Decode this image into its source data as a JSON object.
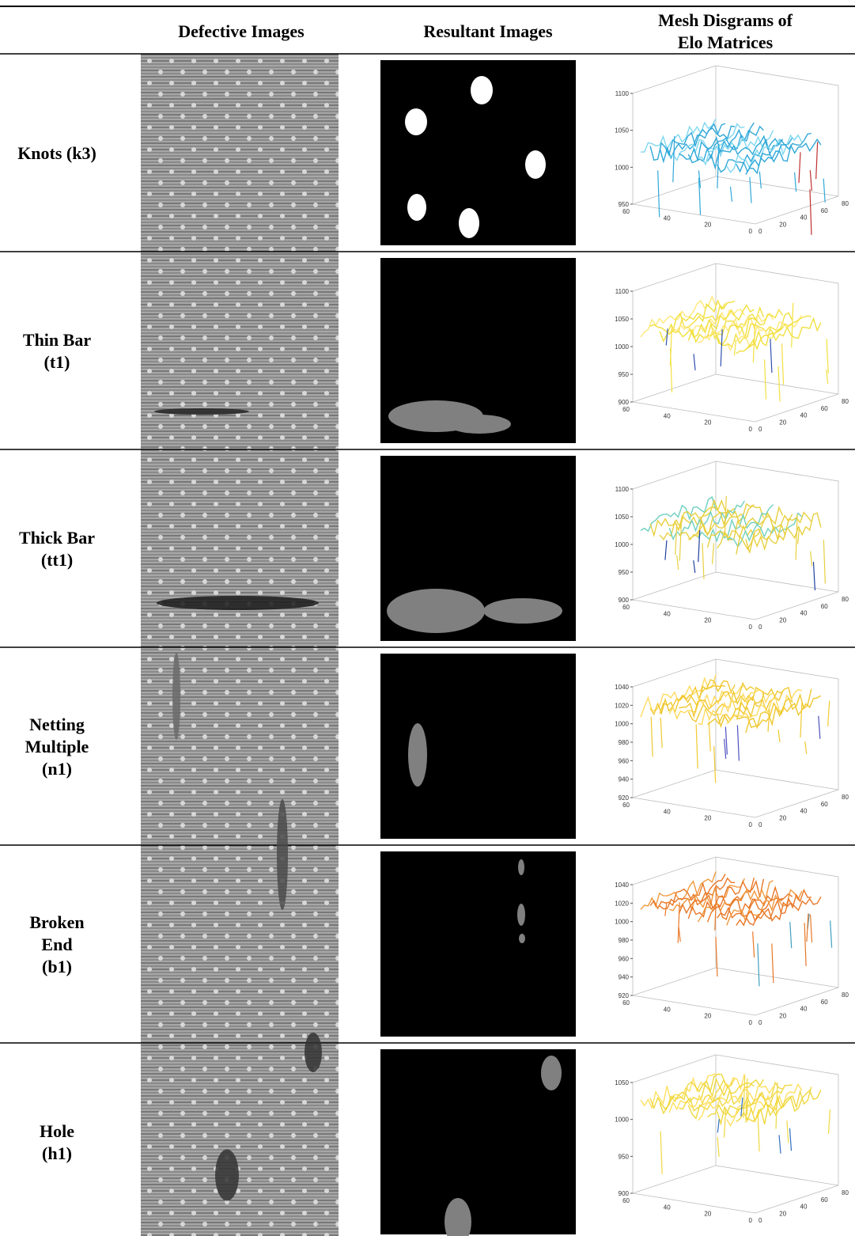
{
  "table": {
    "header": [
      "Defective Images",
      "Resultant Images",
      "Mesh Disgrams of",
      "Elo Matrices"
    ],
    "rows": [
      {
        "label": [
          "Knots (k3)"
        ],
        "mesh": {
          "zticks": [
            950,
            1000,
            1050,
            1100
          ],
          "xticks": [
            0,
            20,
            40,
            60,
            80
          ],
          "yticks": [
            0,
            20,
            40,
            60
          ]
        }
      },
      {
        "label": [
          "Thin Bar",
          "(t1)"
        ],
        "mesh": {
          "zticks": [
            900,
            950,
            1000,
            1050,
            1100
          ],
          "xticks": [
            0,
            20,
            40,
            60,
            80
          ],
          "yticks": [
            0,
            20,
            40,
            60
          ]
        }
      },
      {
        "label": [
          "Thick Bar",
          "(tt1)"
        ],
        "mesh": {
          "zticks": [
            900,
            950,
            1000,
            1050,
            1100
          ],
          "xticks": [
            0,
            20,
            40,
            60,
            80
          ],
          "yticks": [
            0,
            20,
            40,
            60
          ]
        }
      },
      {
        "label": [
          "Netting",
          "Multiple",
          "(n1)"
        ],
        "mesh": {
          "zticks": [
            920,
            940,
            960,
            980,
            1000,
            1020,
            1040
          ],
          "xticks": [
            0,
            20,
            40,
            60,
            80
          ],
          "yticks": [
            0,
            20,
            40,
            60
          ]
        }
      },
      {
        "label": [
          "Broken",
          "End",
          "(b1)"
        ],
        "mesh": {
          "zticks": [
            920,
            940,
            960,
            980,
            1000,
            1020,
            1040
          ],
          "xticks": [
            0,
            20,
            40,
            60,
            80
          ],
          "yticks": [
            0,
            20,
            40,
            60
          ]
        }
      },
      {
        "label": [
          "Hole",
          "(h1)"
        ],
        "mesh": {
          "zticks": [
            900,
            950,
            1000,
            1050
          ],
          "xticks": [
            0,
            20,
            40,
            60,
            80
          ],
          "yticks": [
            0,
            20,
            40,
            60
          ]
        }
      }
    ]
  }
}
